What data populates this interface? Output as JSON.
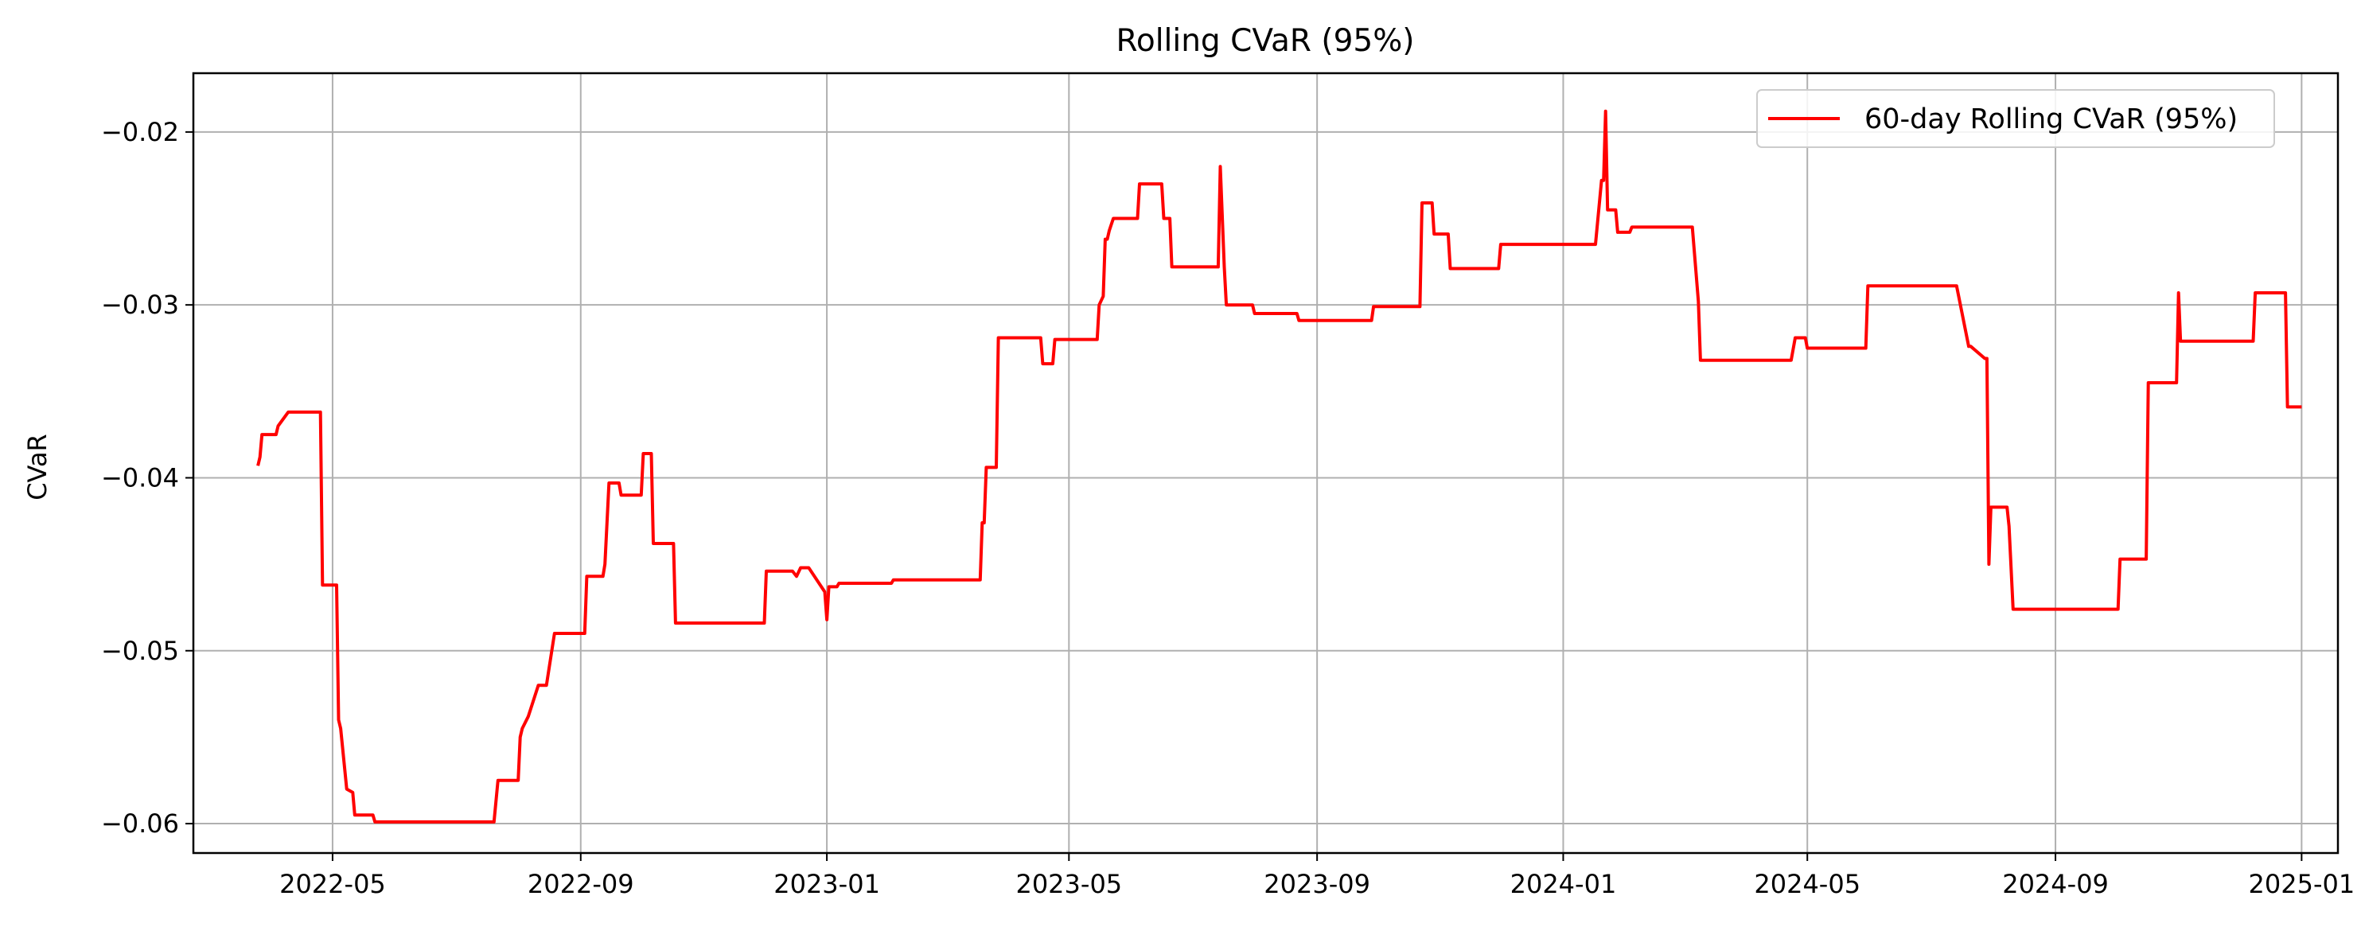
{
  "chart_data": {
    "type": "line",
    "title": "Rolling CVaR (95%)",
    "xlabel": "",
    "ylabel": "CVaR",
    "grid": true,
    "legend_placement": "top-right",
    "x_ticks": [
      "2022-05",
      "2022-09",
      "2023-01",
      "2023-05",
      "2023-09",
      "2024-01",
      "2024-05",
      "2024-09",
      "2025-01"
    ],
    "y_ticks": [
      -0.02,
      -0.03,
      -0.04,
      -0.05,
      -0.06
    ],
    "y_tick_labels": [
      "−0.02",
      "−0.03",
      "−0.04",
      "−0.05",
      "−0.06"
    ],
    "ylim": [
      -0.0617,
      -0.0166
    ],
    "xlim": [
      "2022-02-21",
      "2025-01-19"
    ],
    "series": [
      {
        "name": "60-day Rolling CVaR (95%)",
        "color": "#ff0000",
        "x": [
          "2022-03-25",
          "2022-03-26",
          "2022-03-27",
          "2022-04-03",
          "2022-04-04",
          "2022-04-09",
          "2022-04-25",
          "2022-04-26",
          "2022-05-03",
          "2022-05-04",
          "2022-05-05",
          "2022-05-08",
          "2022-05-11",
          "2022-05-12",
          "2022-05-13",
          "2022-05-21",
          "2022-05-22",
          "2022-07-20",
          "2022-07-22",
          "2022-08-01",
          "2022-08-02",
          "2022-08-03",
          "2022-08-06",
          "2022-08-11",
          "2022-08-15",
          "2022-08-19",
          "2022-09-03",
          "2022-09-04",
          "2022-09-12",
          "2022-09-13",
          "2022-09-15",
          "2022-09-20",
          "2022-09-21",
          "2022-10-01",
          "2022-10-02",
          "2022-10-06",
          "2022-10-07",
          "2022-10-17",
          "2022-10-18",
          "2022-12-01",
          "2022-12-02",
          "2022-12-15",
          "2022-12-17",
          "2022-12-19",
          "2022-12-23",
          "2022-12-31",
          "2023-01-01",
          "2023-01-02",
          "2023-01-03",
          "2023-01-06",
          "2023-01-07",
          "2023-01-10",
          "2023-01-15",
          "2023-02-02",
          "2023-02-03",
          "2023-03-18",
          "2023-03-19",
          "2023-03-20",
          "2023-03-21",
          "2023-03-23",
          "2023-03-26",
          "2023-03-27",
          "2023-04-17",
          "2023-04-18",
          "2023-04-23",
          "2023-04-24",
          "2023-05-15",
          "2023-05-16",
          "2023-05-18",
          "2023-05-19",
          "2023-05-20",
          "2023-05-21",
          "2023-05-23",
          "2023-05-26",
          "2023-06-04",
          "2023-06-05",
          "2023-06-12",
          "2023-06-16",
          "2023-06-17",
          "2023-06-20",
          "2023-06-21",
          "2023-07-13",
          "2023-07-14",
          "2023-07-15",
          "2023-07-17",
          "2023-07-18",
          "2023-07-31",
          "2023-08-01",
          "2023-08-22",
          "2023-08-23",
          "2023-09-28",
          "2023-09-29",
          "2023-10-22",
          "2023-10-23",
          "2023-10-28",
          "2023-10-29",
          "2023-11-05",
          "2023-11-06",
          "2023-11-30",
          "2023-12-01",
          "2024-01-13",
          "2024-01-14",
          "2024-01-17",
          "2024-01-20",
          "2024-01-21",
          "2024-01-22",
          "2024-01-23",
          "2024-01-27",
          "2024-01-28",
          "2024-02-03",
          "2024-02-04",
          "2024-03-04",
          "2024-03-05",
          "2024-03-08",
          "2024-03-09",
          "2024-04-22",
          "2024-04-23",
          "2024-04-25",
          "2024-04-30",
          "2024-05-01",
          "2024-05-30",
          "2024-05-31",
          "2024-07-13",
          "2024-07-14",
          "2024-07-20",
          "2024-07-21",
          "2024-07-28",
          "2024-07-29",
          "2024-07-30",
          "2024-07-31",
          "2024-08-08",
          "2024-08-09",
          "2024-08-11",
          "2024-08-14",
          "2024-10-02",
          "2024-10-03",
          "2024-10-16",
          "2024-10-17",
          "2024-10-31",
          "2024-11-01",
          "2024-11-02",
          "2024-11-03",
          "2024-12-08",
          "2024-12-09",
          "2024-12-11",
          "2024-12-24",
          "2024-12-25",
          "2025-01-01"
        ],
        "values": [
          -0.0393,
          -0.0388,
          -0.0375,
          -0.0375,
          -0.037,
          -0.0362,
          -0.0362,
          -0.0462,
          -0.0462,
          -0.054,
          -0.0545,
          -0.058,
          -0.0582,
          -0.0595,
          -0.0595,
          -0.0595,
          -0.0599,
          -0.0599,
          -0.0575,
          -0.0575,
          -0.055,
          -0.0545,
          -0.0538,
          -0.052,
          -0.052,
          -0.049,
          -0.049,
          -0.0457,
          -0.0457,
          -0.045,
          -0.0403,
          -0.0403,
          -0.041,
          -0.041,
          -0.0386,
          -0.0386,
          -0.0438,
          -0.0438,
          -0.0484,
          -0.0484,
          -0.0454,
          -0.0454,
          -0.0457,
          -0.0452,
          -0.0452,
          -0.0466,
          -0.0482,
          -0.0463,
          -0.0463,
          -0.0463,
          -0.0461,
          -0.0461,
          -0.0461,
          -0.0461,
          -0.0459,
          -0.0459,
          -0.0426,
          -0.0426,
          -0.0394,
          -0.0394,
          -0.0394,
          -0.0319,
          -0.0319,
          -0.0334,
          -0.0334,
          -0.032,
          -0.032,
          -0.03,
          -0.0295,
          -0.0262,
          -0.0262,
          -0.0257,
          -0.025,
          -0.025,
          -0.025,
          -0.023,
          -0.023,
          -0.023,
          -0.025,
          -0.025,
          -0.0278,
          -0.0278,
          -0.0278,
          -0.022,
          -0.0278,
          -0.03,
          -0.03,
          -0.0305,
          -0.0305,
          -0.0309,
          -0.0309,
          -0.0301,
          -0.0301,
          -0.0241,
          -0.0241,
          -0.0259,
          -0.0259,
          -0.0279,
          -0.0279,
          -0.0265,
          -0.0265,
          -0.0265,
          -0.0265,
          -0.0228,
          -0.0228,
          -0.0188,
          -0.0245,
          -0.0245,
          -0.0258,
          -0.0258,
          -0.0255,
          -0.0255,
          -0.0255,
          -0.0298,
          -0.0332,
          -0.0332,
          -0.0332,
          -0.0319,
          -0.0319,
          -0.0325,
          -0.0325,
          -0.0289,
          -0.0289,
          -0.0289,
          -0.0324,
          -0.0324,
          -0.0331,
          -0.0331,
          -0.045,
          -0.0417,
          -0.0417,
          -0.0428,
          -0.0476,
          -0.0476,
          -0.0476,
          -0.0447,
          -0.0447,
          -0.0345,
          -0.0345,
          -0.0293,
          -0.0321,
          -0.0321,
          -0.0321,
          -0.0293,
          -0.0293,
          -0.0293,
          -0.0359,
          -0.0359
        ]
      }
    ]
  }
}
